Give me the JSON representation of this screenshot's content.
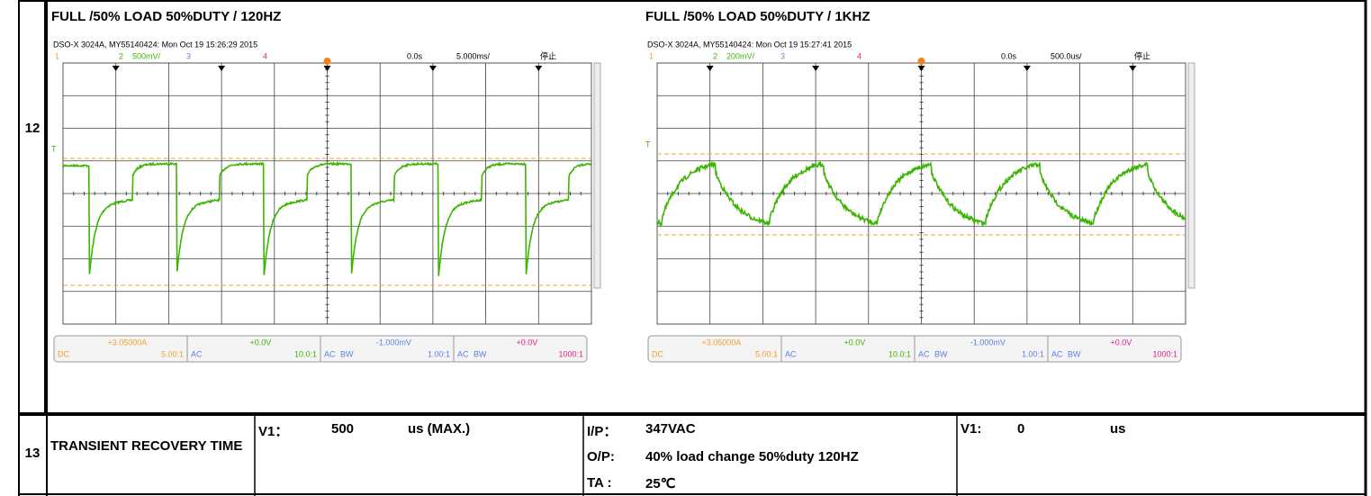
{
  "rows": [
    {
      "number": "12",
      "panels": [
        {
          "title": "FULL /50% LOAD 50%DUTY / 120HZ",
          "scope": {
            "header": "DSO-X 3024A, MY55140424: Mon Oct 19 15:26:29 2015",
            "ch1": "1",
            "ch2": "2",
            "ch2_scale": "500mV/",
            "ch3": "3",
            "ch4": "4",
            "delay": "0.0s",
            "timebase": "5.000ms/",
            "status": "停止",
            "footer": [
              {
                "value": "+3.05000A",
                "tags": [
                  "DC"
                ],
                "ratio": "5.00:1"
              },
              {
                "value": "+0.0V",
                "tags": [
                  "AC"
                ],
                "ratio": "10.0:1"
              },
              {
                "value": "-1.000mV",
                "tags": [
                  "AC",
                  "BW"
                ],
                "ratio": "1.00:1"
              },
              {
                "value": "+0.0V",
                "tags": [
                  "AC",
                  "BW"
                ],
                "ratio": "1000:1"
              }
            ]
          }
        },
        {
          "title": "FULL /50% LOAD 50%DUTY / 1KHZ",
          "scope": {
            "header": "DSO-X 3024A, MY55140424: Mon Oct 19 15:27:41 2015",
            "ch1": "1",
            "ch2": "2",
            "ch2_scale": "200mV/",
            "ch3": "3",
            "ch4": "4",
            "delay": "0.0s",
            "timebase": "500.0us/",
            "status": "停止",
            "footer": [
              {
                "value": "+3.05000A",
                "tags": [
                  "DC"
                ],
                "ratio": "5.00:1"
              },
              {
                "value": "+0.0V",
                "tags": [
                  "AC"
                ],
                "ratio": "10.0:1"
              },
              {
                "value": "-1.000mV",
                "tags": [
                  "AC",
                  "BW"
                ],
                "ratio": "1.00:1"
              },
              {
                "value": "+0.0V",
                "tags": [
                  "AC",
                  "BW"
                ],
                "ratio": "1000:1"
              }
            ]
          }
        }
      ]
    },
    {
      "number": "13",
      "item": "TRANSIENT RECOVERY TIME",
      "spec": {
        "label": "V1：",
        "value": "500",
        "unit": "us (MAX.)"
      },
      "conditions": [
        {
          "label": "I/P：",
          "value": "347VAC"
        },
        {
          "label": "O/P:",
          "value": "40% load change 50%duty 120HZ"
        },
        {
          "label": "TA :",
          "value": "25℃"
        }
      ],
      "result": {
        "label": "V1:",
        "value": "0",
        "unit": "us"
      }
    }
  ]
}
